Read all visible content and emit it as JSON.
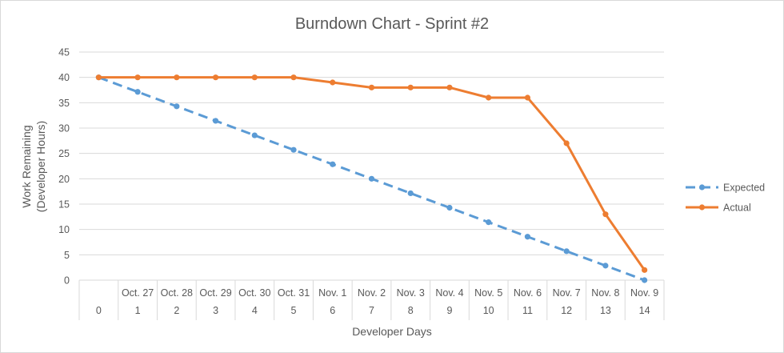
{
  "chart_data": {
    "type": "line",
    "title": "Burndown Chart - Sprint #2",
    "xlabel": "Developer Days",
    "ylabel_lines": [
      "Work Remaining",
      "(Developer Hours)"
    ],
    "ylim": [
      0,
      45
    ],
    "yticks": [
      0,
      5,
      10,
      15,
      20,
      25,
      30,
      35,
      40,
      45
    ],
    "grid": true,
    "legend_position": "right",
    "x": [
      0,
      1,
      2,
      3,
      4,
      5,
      6,
      7,
      8,
      9,
      10,
      11,
      12,
      13,
      14
    ],
    "dates": [
      "",
      "Oct. 27",
      "Oct. 28",
      "Oct. 29",
      "Oct. 30",
      "Oct. 31",
      "Nov. 1",
      "Nov. 2",
      "Nov. 3",
      "Nov. 4",
      "Nov. 5",
      "Nov. 6",
      "Nov. 7",
      "Nov. 8",
      "Nov. 9"
    ],
    "series": [
      {
        "name": "Expected",
        "color": "#5B9BD5",
        "style": "dashed",
        "values": [
          40,
          37.14,
          34.29,
          31.43,
          28.57,
          25.71,
          22.86,
          20,
          17.14,
          14.29,
          11.43,
          8.57,
          5.71,
          2.86,
          0
        ]
      },
      {
        "name": "Actual",
        "color": "#ED7D31",
        "style": "solid",
        "values": [
          40,
          40,
          40,
          40,
          40,
          40,
          39,
          38,
          38,
          38,
          36,
          36,
          27,
          13,
          2
        ]
      }
    ]
  }
}
